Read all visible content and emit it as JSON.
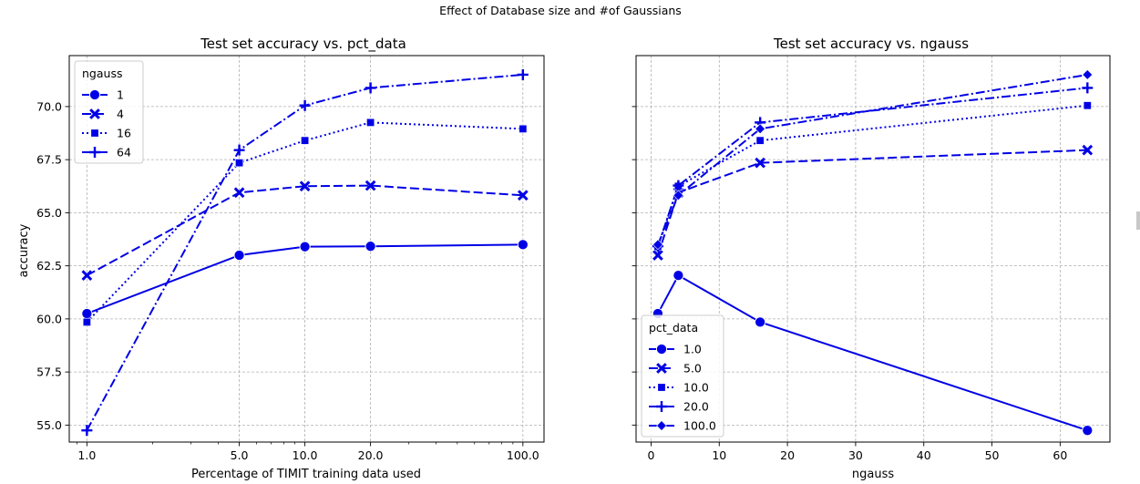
{
  "figure": {
    "suptitle": "Effect of Database size and #of Gaussians"
  },
  "colors": {
    "series": "#0000e6",
    "grid": "#b0b0b0",
    "axes": "#000000",
    "legend_border": "#cccccc"
  },
  "chart_data": [
    {
      "type": "line",
      "title": "Test set accuracy vs. pct_data",
      "xlabel": "Percentage of TIMIT training data used",
      "ylabel": "accuracy",
      "xscale": "log",
      "xlim": [
        0.83,
        125
      ],
      "ylim": [
        54.2,
        72.4
      ],
      "xticks": [
        1,
        5,
        10,
        20,
        100
      ],
      "xticklabels": [
        "1.0",
        "5.0",
        "10.0",
        "20.0",
        "100.0"
      ],
      "yticks": [
        55,
        57.5,
        60,
        62.5,
        65,
        67.5,
        70
      ],
      "yticklabels": [
        "55.0",
        "57.5",
        "60.0",
        "62.5",
        "65.0",
        "67.5",
        "70.0"
      ],
      "grid": true,
      "legend": {
        "title": "ngauss",
        "loc": "upper-left"
      },
      "x": [
        1,
        5,
        10,
        20,
        100
      ],
      "series": [
        {
          "name": "1",
          "marker": "circle",
          "dash": "solid",
          "values": [
            60.25,
            63.0,
            63.4,
            63.42,
            63.5
          ]
        },
        {
          "name": "4",
          "marker": "x",
          "dash": "dashed",
          "values": [
            62.05,
            65.95,
            66.25,
            66.28,
            65.82
          ]
        },
        {
          "name": "16",
          "marker": "square",
          "dash": "dotted",
          "values": [
            59.85,
            67.35,
            68.4,
            69.25,
            68.95
          ]
        },
        {
          "name": "64",
          "marker": "plus",
          "dash": "dashdot",
          "values": [
            54.75,
            67.95,
            70.05,
            70.88,
            71.5
          ]
        }
      ]
    },
    {
      "type": "line",
      "title": "Test set accuracy vs. ngauss",
      "xlabel": "ngauss",
      "ylabel": "",
      "xscale": "linear",
      "xlim": [
        -2.2,
        67.3
      ],
      "ylim": [
        54.2,
        72.4
      ],
      "xticks": [
        0,
        10,
        20,
        30,
        40,
        50,
        60
      ],
      "xticklabels": [
        "0",
        "10",
        "20",
        "30",
        "40",
        "50",
        "60"
      ],
      "yticks": [
        55,
        57.5,
        60,
        62.5,
        65,
        67.5,
        70
      ],
      "yticklabels": [],
      "grid": true,
      "legend": {
        "title": "pct_data",
        "loc": "lower-left"
      },
      "x": [
        1,
        4,
        16,
        64
      ],
      "series": [
        {
          "name": "1.0",
          "marker": "circle",
          "dash": "solid",
          "values": [
            60.25,
            62.05,
            59.85,
            54.75
          ]
        },
        {
          "name": "5.0",
          "marker": "x",
          "dash": "dashed",
          "values": [
            63.0,
            65.95,
            67.35,
            67.95
          ]
        },
        {
          "name": "10.0",
          "marker": "square",
          "dash": "dotted",
          "values": [
            63.4,
            66.25,
            68.4,
            70.05
          ]
        },
        {
          "name": "20.0",
          "marker": "plus",
          "dash": "dashdot",
          "values": [
            63.42,
            66.28,
            69.25,
            70.88
          ]
        },
        {
          "name": "100.0",
          "marker": "diamond",
          "dash": "dashdot",
          "values": [
            63.5,
            65.82,
            68.95,
            71.5
          ]
        }
      ]
    }
  ]
}
